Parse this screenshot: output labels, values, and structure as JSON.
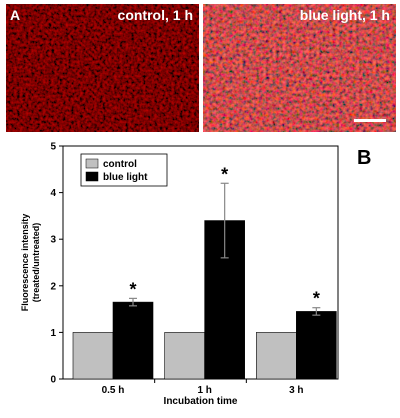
{
  "panel_a": {
    "label": "A",
    "left_title": "control, 1 h",
    "right_title": "blue light, 1 h"
  },
  "panel_b": {
    "label": "B"
  },
  "chart_data": {
    "type": "bar",
    "categories": [
      "0.5 h",
      "1 h",
      "3 h"
    ],
    "series": [
      {
        "name": "control",
        "values": [
          1,
          1,
          1
        ],
        "errors": [
          0,
          0,
          0
        ],
        "color": "#c0c0c0"
      },
      {
        "name": "blue light",
        "values": [
          1.65,
          3.4,
          1.45
        ],
        "errors": [
          0.08,
          0.8,
          0.08
        ],
        "color": "#000000"
      }
    ],
    "significance": [
      "*",
      "*",
      "*"
    ],
    "xlabel": "Incubation time",
    "ylabel": "Fluorescence intensity (treated/untreated)",
    "ylabel_lines": [
      "Fluorescence intensity",
      "(treated/untreated)"
    ],
    "ylim": [
      0,
      5
    ],
    "yticks": [
      "0",
      "1",
      "2",
      "3",
      "4",
      "5"
    ],
    "legend_position": "top-left",
    "grid": false
  }
}
